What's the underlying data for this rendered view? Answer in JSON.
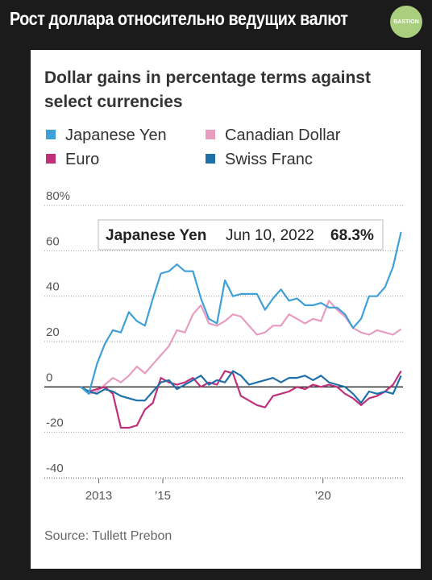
{
  "header": {
    "title": "Рост доллара относительно ведущих валют",
    "logo": "BASTION"
  },
  "chart_data": {
    "type": "line",
    "title": "Dollar gains in percentage terms against select currencies",
    "source": "Source: Tullett Prebon",
    "x": [
      2012.44,
      2012.69,
      2012.94,
      2013.19,
      2013.44,
      2013.69,
      2013.94,
      2014.19,
      2014.44,
      2014.69,
      2014.94,
      2015.19,
      2015.44,
      2015.69,
      2015.94,
      2016.19,
      2016.44,
      2016.69,
      2016.94,
      2017.19,
      2017.44,
      2017.69,
      2017.94,
      2018.19,
      2018.44,
      2018.69,
      2018.94,
      2019.19,
      2019.44,
      2019.69,
      2019.94,
      2020.19,
      2020.44,
      2020.69,
      2020.94,
      2021.19,
      2021.44,
      2021.69,
      2021.94,
      2022.19,
      2022.44
    ],
    "series": [
      {
        "name": "Japanese Yen",
        "color": "#3fa0d8",
        "values": [
          0,
          -3,
          10,
          19,
          25,
          24,
          33,
          29,
          27,
          39,
          50,
          51,
          54,
          51,
          51,
          39,
          30,
          28,
          47,
          40,
          41,
          41,
          41,
          34,
          39,
          43,
          38,
          39,
          36,
          36,
          37,
          35,
          35,
          32,
          26,
          30,
          40,
          40,
          44,
          53,
          68.3
        ]
      },
      {
        "name": "Canadian Dollar",
        "color": "#e89cc0",
        "values": [
          0,
          -3,
          -2,
          1,
          4,
          2,
          5,
          9,
          6,
          10,
          14,
          18,
          25,
          24,
          32,
          36,
          28,
          27,
          29,
          32,
          31,
          27,
          23,
          24,
          27,
          27,
          32,
          30,
          28,
          30,
          29,
          38,
          34,
          31,
          26,
          24,
          23,
          25,
          24,
          23,
          25.5
        ]
      },
      {
        "name": "Euro",
        "color": "#c0307a",
        "values": [
          0,
          -2,
          -1,
          0,
          -3,
          -18,
          -18,
          -17,
          -10,
          -7,
          4,
          2,
          1,
          2,
          4,
          0,
          2,
          1,
          7,
          6,
          -4,
          -6,
          -8,
          -9,
          -4,
          -3,
          -2,
          0,
          -1,
          1,
          0,
          1,
          0,
          -3,
          -5,
          -8,
          -5,
          -4,
          -2,
          1,
          7
        ]
      },
      {
        "name": "Swiss Franc",
        "color": "#1f6fa8",
        "values": [
          0,
          -2,
          -3,
          -1,
          -2,
          -4,
          -5,
          -6,
          -6,
          -2,
          2,
          3,
          -1,
          1,
          3,
          5,
          1,
          3,
          2,
          7,
          5,
          1,
          2,
          3,
          4,
          2,
          4,
          4,
          5,
          3,
          5,
          2,
          1,
          0,
          -3,
          -7,
          -2,
          -3,
          -2,
          -3,
          5
        ]
      }
    ],
    "tooltip": {
      "date": "Jun 10, 2022",
      "label": "68.3%"
    },
    "xlim": [
      2011.3,
      2022.5
    ],
    "xticks": [
      2013,
      {
        "value": 2015,
        "label": "’15"
      },
      {
        "value": 2020,
        "label": "’20"
      }
    ],
    "ylim": [
      -40,
      80
    ],
    "yticks": [
      {
        "value": 80,
        "label": "80%"
      },
      60,
      40,
      20,
      0,
      -20,
      -40
    ],
    "grid": true
  }
}
